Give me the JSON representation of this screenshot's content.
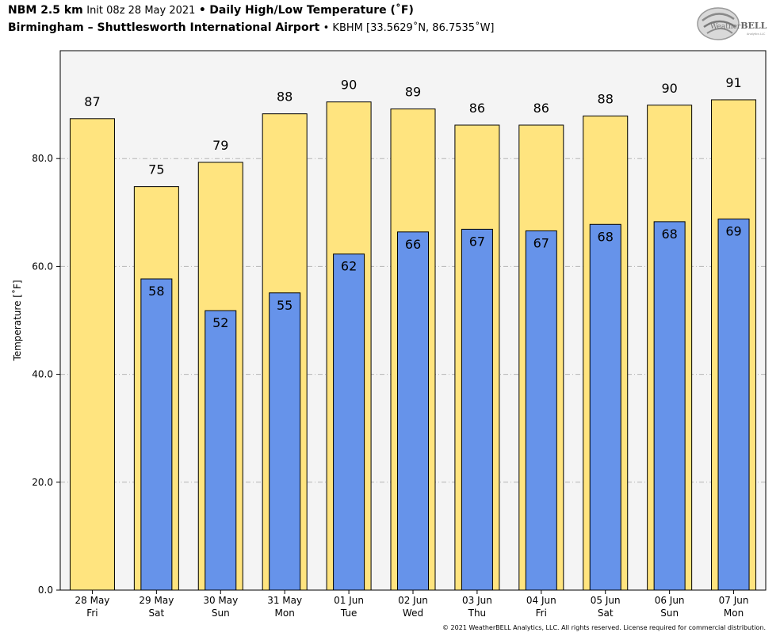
{
  "header": {
    "model": "NBM 2.5 km",
    "init": "Init 08z 28 May 2021",
    "bullet": "•",
    "product": "Daily High/Low Temperature (˚F)",
    "station": "Birmingham – Shuttlesworth International Airport",
    "station_id": "• KBHM [33.5629˚N, 86.7535˚W]"
  },
  "logo": {
    "text_a": "Weather",
    "text_b": "BELL",
    "sub": "Analytics LLC",
    "icon": "swirl-logo-icon"
  },
  "footer": "© 2021 WeatherBELL Analytics, LLC. All rights reserved. License required for commercial distribution.",
  "colors": {
    "high": "#ffe47f",
    "low": "#6693ea",
    "plot_bg": "#f4f4f4"
  },
  "chart_data": {
    "type": "bar",
    "title": "Daily High/Low Temperature (˚F)",
    "ylabel": "Temperature [˚F]",
    "ylim": [
      0,
      100
    ],
    "yticks": [
      "0.0",
      "20.0",
      "40.0",
      "60.0",
      "80.0"
    ],
    "ytick_values": [
      0,
      20,
      40,
      60,
      80
    ],
    "grid": "horizontal dash-dot",
    "categories": [
      {
        "date": "28 May",
        "day": "Fri"
      },
      {
        "date": "29 May",
        "day": "Sat"
      },
      {
        "date": "30 May",
        "day": "Sun"
      },
      {
        "date": "31 May",
        "day": "Mon"
      },
      {
        "date": "01 Jun",
        "day": "Tue"
      },
      {
        "date": "02 Jun",
        "day": "Wed"
      },
      {
        "date": "03 Jun",
        "day": "Thu"
      },
      {
        "date": "04 Jun",
        "day": "Fri"
      },
      {
        "date": "05 Jun",
        "day": "Sat"
      },
      {
        "date": "06 Jun",
        "day": "Sun"
      },
      {
        "date": "07 Jun",
        "day": "Mon"
      }
    ],
    "series": [
      {
        "values": [
          87.4,
          74.8,
          79.3,
          88.3,
          90.5,
          89.2,
          86.2,
          86.2,
          87.9,
          89.9,
          90.9
        ],
        "labels": [
          "87",
          "75",
          "79",
          "88",
          "90",
          "89",
          "86",
          "86",
          "88",
          "90",
          "91"
        ]
      },
      {
        "values": [
          null,
          57.7,
          51.8,
          55.1,
          62.3,
          66.4,
          66.9,
          66.6,
          67.8,
          68.3,
          68.8
        ],
        "labels": [
          null,
          "58",
          "52",
          "55",
          "62",
          "66",
          "67",
          "67",
          "68",
          "68",
          "69"
        ]
      }
    ]
  }
}
